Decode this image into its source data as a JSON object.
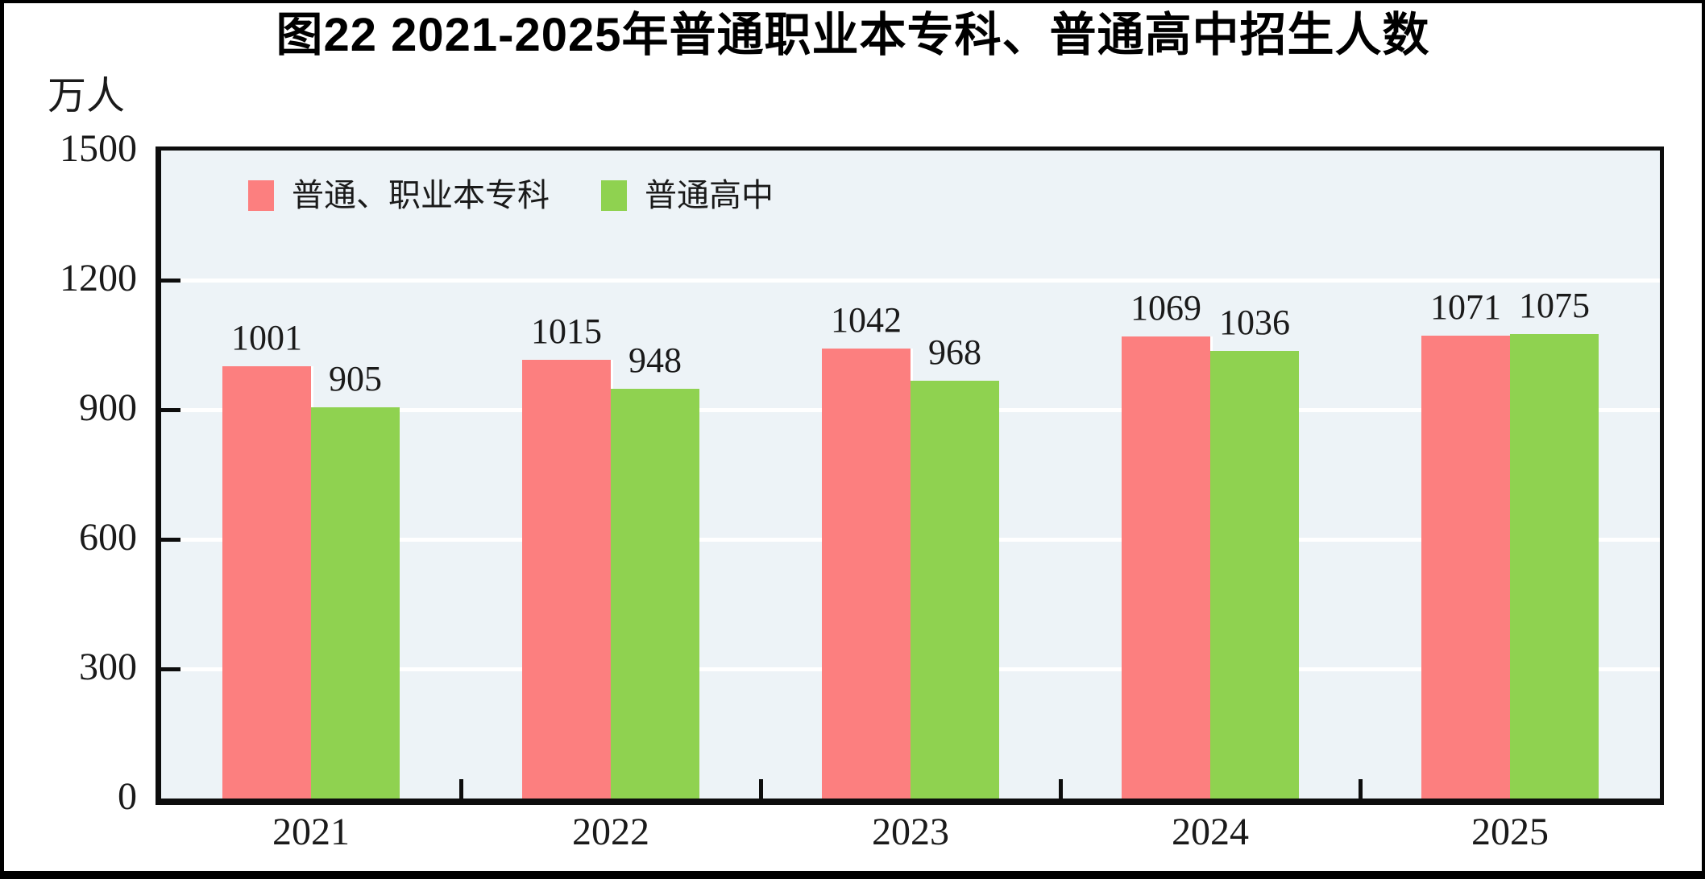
{
  "title": "图22  2021-2025年普通职业本专科、普通高中招生人数",
  "unit_label": "万人",
  "colors": {
    "series_1": "#fc7f7f",
    "series_2": "#8fd250",
    "plot_background": "#edf3f7",
    "gridline": "#ffffff",
    "axis_frame": "#0d0d0d",
    "text": "#1a1a1a",
    "outer_frame": "#000000"
  },
  "chart_data": {
    "type": "bar",
    "title": "图22  2021-2025年普通职业本专科、普通高中招生人数",
    "categories": [
      "2021",
      "2022",
      "2023",
      "2024",
      "2025"
    ],
    "series": [
      {
        "name": "普通、职业本专科",
        "color": "#fc7f7f",
        "values": [
          1001,
          1015,
          1042,
          1069,
          1071
        ]
      },
      {
        "name": "普通高中",
        "color": "#8fd250",
        "values": [
          905,
          948,
          968,
          1036,
          1075
        ]
      }
    ],
    "xlabel": "",
    "ylabel": "万人",
    "ylim": [
      0,
      1500
    ],
    "yticks": [
      0,
      300,
      600,
      900,
      1200,
      1500
    ],
    "grid": true,
    "legend_position": "top-left-inside",
    "data_labels": true
  }
}
